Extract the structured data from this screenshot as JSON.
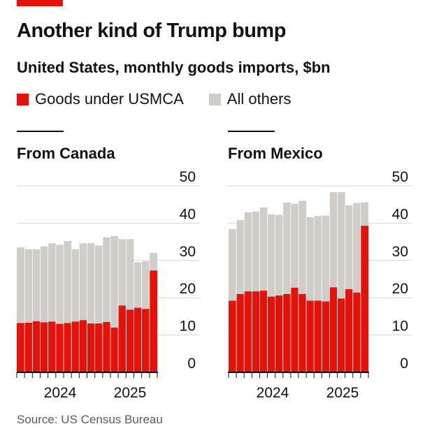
{
  "header": {
    "title": "Another kind of Trump bump",
    "subtitle": "United States, monthly goods imports, $bn"
  },
  "legend": [
    {
      "label": "Goods under USMCA",
      "color": "#e3120b"
    },
    {
      "label": "All others",
      "color": "#d0cdc8"
    }
  ],
  "source": "Source: US Census Bureau",
  "colors": {
    "usmca": "#e3120b",
    "others": "#d0cdc8",
    "grid": "#d5d5d5",
    "axis": "#121212",
    "separator": "#ffffff"
  },
  "chart_data": [
    {
      "type": "bar",
      "stacked": true,
      "title": "From Canada",
      "ylim": [
        0,
        50
      ],
      "yticks": [
        0,
        10,
        20,
        30,
        40,
        50
      ],
      "y_axis_side": "right",
      "grid": true,
      "xtick_labels": [
        "2024",
        "2025"
      ],
      "categories": [
        "Jan 2024",
        "Feb 2024",
        "Mar 2024",
        "Apr 2024",
        "May 2024",
        "Jun 2024",
        "Jul 2024",
        "Aug 2024",
        "Sep 2024",
        "Oct 2024",
        "Nov 2024",
        "Dec 2024",
        "Jan 2025",
        "Feb 2025",
        "Mar 2025",
        "Apr 2025",
        "May 2025",
        "Jun 2025"
      ],
      "series": [
        {
          "name": "Goods under USMCA",
          "values": [
            13.2,
            13.3,
            13.7,
            13.4,
            13.6,
            13.0,
            13.2,
            13.6,
            14.0,
            13.1,
            13.1,
            13.5,
            12.0,
            17.9,
            16.8,
            17.3,
            17.0,
            27.3
          ]
        },
        {
          "name": "All others",
          "values": [
            20.3,
            19.7,
            19.3,
            20.4,
            21.0,
            21.2,
            22.0,
            19.4,
            20.6,
            21.5,
            20.9,
            22.7,
            24.5,
            17.8,
            18.9,
            12.2,
            12.8,
            4.7
          ]
        }
      ]
    },
    {
      "type": "bar",
      "stacked": true,
      "title": "From Mexico",
      "ylim": [
        0,
        50
      ],
      "yticks": [
        0,
        10,
        20,
        30,
        40,
        50
      ],
      "y_axis_side": "right",
      "grid": true,
      "xtick_labels": [
        "2024",
        "2025"
      ],
      "categories": [
        "Jan 2024",
        "Feb 2024",
        "Mar 2024",
        "Apr 2024",
        "May 2024",
        "Jun 2024",
        "Jul 2024",
        "Aug 2024",
        "Sep 2024",
        "Oct 2024",
        "Nov 2024",
        "Dec 2024",
        "Jan 2025",
        "Feb 2025",
        "Mar 2025",
        "Apr 2025",
        "May 2025",
        "Jun 2025"
      ],
      "series": [
        {
          "name": "Goods under USMCA",
          "values": [
            19.2,
            21.0,
            21.7,
            21.7,
            21.9,
            20.3,
            20.6,
            21.0,
            22.7,
            21.0,
            19.2,
            19.2,
            19.0,
            22.8,
            19.8,
            22.3,
            21.4,
            39.3
          ]
        },
        {
          "name": "All others",
          "values": [
            19.2,
            19.8,
            21.2,
            21.4,
            22.3,
            22.0,
            21.6,
            24.5,
            22.5,
            25.0,
            22.4,
            22.7,
            23.0,
            25.5,
            28.5,
            22.5,
            24.0,
            6.3
          ]
        }
      ]
    }
  ]
}
